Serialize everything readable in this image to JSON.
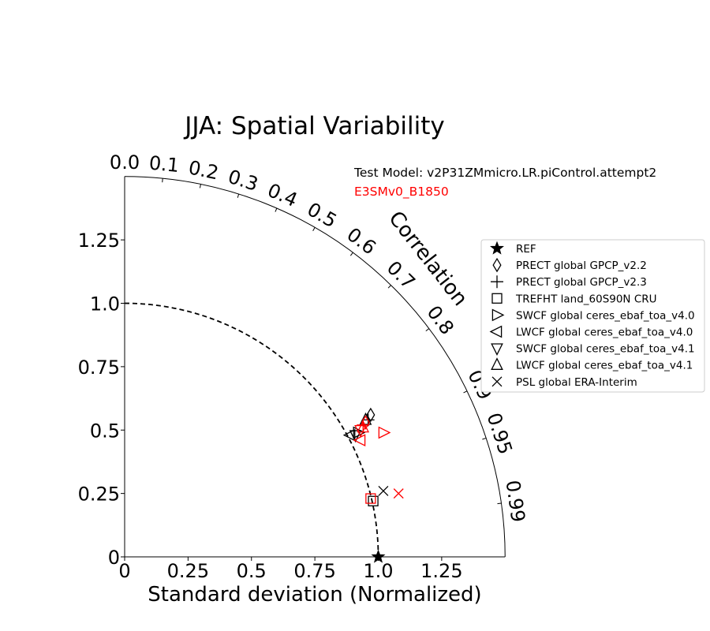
{
  "chart_data": {
    "type": "scatter",
    "title": "JJA: Spatial Variability",
    "xlabel": "Standard deviation (Normalized)",
    "ylabel": "",
    "angular_axis_label": "Correlation",
    "xlim": [
      0,
      1.5
    ],
    "ylim": [
      0,
      1.5
    ],
    "std_ticks": [
      "0",
      "0.25",
      "0.5",
      "0.75",
      "1.0",
      "1.25"
    ],
    "std_tick_values": [
      0,
      0.25,
      0.5,
      0.75,
      1.0,
      1.25
    ],
    "corr_ticks": [
      "0.0",
      "0.1",
      "0.2",
      "0.3",
      "0.4",
      "0.5",
      "0.6",
      "0.7",
      "0.8",
      "0.9",
      "0.95",
      "0.99"
    ],
    "corr_tick_values": [
      0.0,
      0.1,
      0.2,
      0.3,
      0.4,
      0.5,
      0.6,
      0.7,
      0.8,
      0.9,
      0.95,
      0.99
    ],
    "reference_arc_std": 1.0,
    "annotation_line1": "Test Model: v2P31ZMmicro.LR.piControl.attempt2",
    "annotation_line2": "E3SMv0_B1850",
    "colors": {
      "test": "#000000",
      "reference_model": "#ff0000"
    },
    "legend_position": "right",
    "legend": [
      {
        "label": "REF",
        "marker": "star"
      },
      {
        "label": "PRECT global GPCP_v2.2",
        "marker": "diamond"
      },
      {
        "label": "PRECT global GPCP_v2.3",
        "marker": "plus"
      },
      {
        "label": "TREFHT land_60S90N CRU",
        "marker": "square"
      },
      {
        "label": "SWCF global ceres_ebaf_toa_v4.0",
        "marker": "triangle-right"
      },
      {
        "label": "LWCF global ceres_ebaf_toa_v4.0",
        "marker": "triangle-left"
      },
      {
        "label": "SWCF global ceres_ebaf_toa_v4.1",
        "marker": "triangle-down"
      },
      {
        "label": "LWCF global ceres_ebaf_toa_v4.1",
        "marker": "triangle-up"
      },
      {
        "label": "PSL global ERA-Interim",
        "marker": "x"
      }
    ],
    "points": [
      {
        "name": "REF",
        "marker": "star",
        "color": "#000000",
        "x": 1.0,
        "y": 0.0
      },
      {
        "name": "PRECT global GPCP_v2.2",
        "marker": "diamond",
        "color": "#000000",
        "x": 0.97,
        "y": 0.56
      },
      {
        "name": "PRECT global GPCP_v2.3",
        "marker": "plus",
        "color": "#000000",
        "x": 0.96,
        "y": 0.54
      },
      {
        "name": "TREFHT land_60S90N CRU",
        "marker": "square",
        "color": "#000000",
        "x": 0.98,
        "y": 0.22
      },
      {
        "name": "SWCF global ceres_ebaf_toa_v4.0",
        "marker": "triangle-right",
        "color": "#000000",
        "x": 0.92,
        "y": 0.49
      },
      {
        "name": "LWCF global ceres_ebaf_toa_v4.0",
        "marker": "triangle-left",
        "color": "#000000",
        "x": 0.89,
        "y": 0.48
      },
      {
        "name": "SWCF global ceres_ebaf_toa_v4.1",
        "marker": "triangle-down",
        "color": "#000000",
        "x": 0.91,
        "y": 0.48
      },
      {
        "name": "LWCF global ceres_ebaf_toa_v4.1",
        "marker": "triangle-up",
        "color": "#000000",
        "x": 0.95,
        "y": 0.54
      },
      {
        "name": "PSL global ERA-Interim",
        "marker": "x",
        "color": "#000000",
        "x": 1.02,
        "y": 0.26
      },
      {
        "name": "PRECT global GPCP_v2.2",
        "marker": "diamond",
        "color": "#ff0000",
        "x": 0.95,
        "y": 0.53
      },
      {
        "name": "PRECT global GPCP_v2.3",
        "marker": "plus",
        "color": "#ff0000",
        "x": 0.94,
        "y": 0.52
      },
      {
        "name": "TREFHT land_60S90N CRU",
        "marker": "square",
        "color": "#ff0000",
        "x": 0.97,
        "y": 0.23
      },
      {
        "name": "SWCF global ceres_ebaf_toa_v4.0",
        "marker": "triangle-right",
        "color": "#ff0000",
        "x": 1.02,
        "y": 0.49
      },
      {
        "name": "LWCF global ceres_ebaf_toa_v4.0",
        "marker": "triangle-left",
        "color": "#ff0000",
        "x": 0.93,
        "y": 0.46
      },
      {
        "name": "SWCF global ceres_ebaf_toa_v4.1",
        "marker": "triangle-down",
        "color": "#ff0000",
        "x": 0.93,
        "y": 0.5
      },
      {
        "name": "LWCF global ceres_ebaf_toa_v4.1",
        "marker": "triangle-up",
        "color": "#ff0000",
        "x": 0.94,
        "y": 0.51
      },
      {
        "name": "PSL global ERA-Interim",
        "marker": "x",
        "color": "#ff0000",
        "x": 1.08,
        "y": 0.25
      }
    ]
  }
}
